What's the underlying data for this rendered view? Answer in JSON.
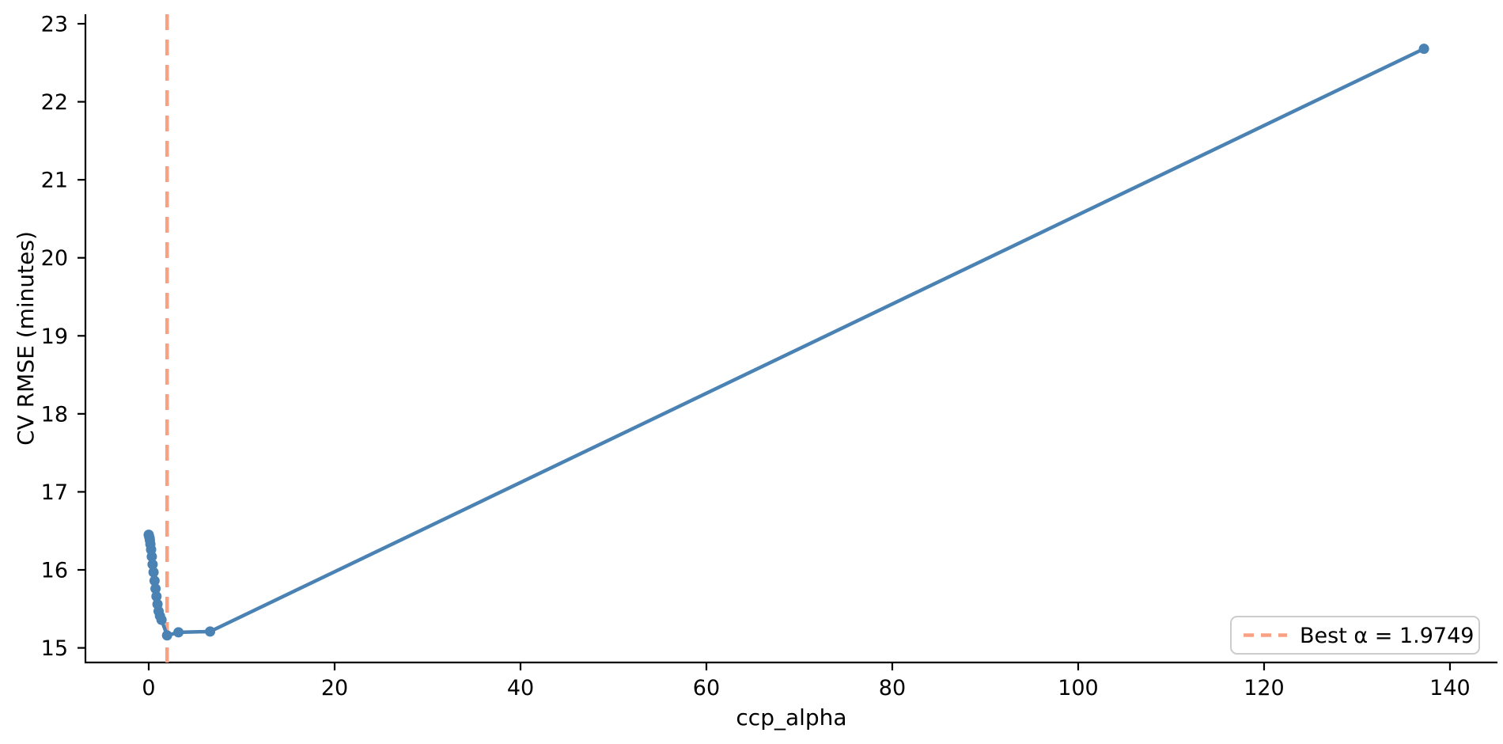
{
  "chart_data": {
    "type": "line",
    "title": "",
    "xlabel": "ccp_alpha",
    "ylabel": "CV RMSE (minutes)",
    "xlim": [
      -6.81,
      145.11
    ],
    "ylim": [
      14.813,
      23.122
    ],
    "x_ticks": [
      0,
      20,
      40,
      60,
      80,
      100,
      120,
      140
    ],
    "y_ticks": [
      15,
      16,
      17,
      18,
      19,
      20,
      21,
      22,
      23
    ],
    "grid": false,
    "series": [
      {
        "name": "cv-rmse-curve",
        "color": "#4a82b4",
        "marker": "circle",
        "points": [
          [
            0.0,
            16.45
          ],
          [
            0.04,
            16.43
          ],
          [
            0.09,
            16.41
          ],
          [
            0.13,
            16.38
          ],
          [
            0.18,
            16.33
          ],
          [
            0.25,
            16.26
          ],
          [
            0.33,
            16.17
          ],
          [
            0.42,
            16.07
          ],
          [
            0.52,
            15.97
          ],
          [
            0.63,
            15.86
          ],
          [
            0.73,
            15.76
          ],
          [
            0.83,
            15.66
          ],
          [
            0.94,
            15.56
          ],
          [
            1.06,
            15.47
          ],
          [
            1.21,
            15.41
          ],
          [
            1.38,
            15.36
          ],
          [
            1.9749,
            15.16
          ],
          [
            3.2,
            15.2
          ],
          [
            6.6,
            15.21
          ],
          [
            137.2,
            22.68
          ]
        ]
      }
    ],
    "vline": {
      "x": 1.9749,
      "color": "#f9a183",
      "style": "dashed"
    },
    "best_alpha": 1.9749,
    "legend": {
      "position": "lower right",
      "entries": [
        {
          "label": "Best α = 1.9749",
          "style": "dashed",
          "color": "#f9a183"
        }
      ]
    },
    "colors": {
      "line": "#4a82b4",
      "vline": "#f9a183",
      "spine": "#000000",
      "legend_border": "#cccccc",
      "text": "#000000"
    }
  }
}
